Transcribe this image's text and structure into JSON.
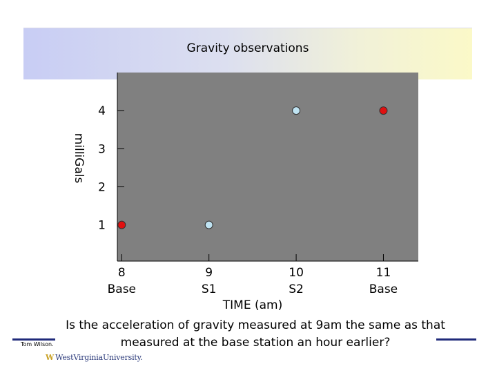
{
  "chart_data": {
    "type": "scatter",
    "title": "Gravity observations",
    "ylabel": "milliGals",
    "xlabel": "TIME (am)",
    "ylim": [
      0.05,
      5.0
    ],
    "xlim": [
      7.95,
      11.4
    ],
    "grid": false,
    "y_ticks": [
      "1",
      "2",
      "3",
      "4"
    ],
    "x_ticks": [
      {
        "value": 8,
        "label": "8",
        "sublabel": "Base"
      },
      {
        "value": 9,
        "label": "9",
        "sublabel": "S1"
      },
      {
        "value": 10,
        "label": "10",
        "sublabel": "S2"
      },
      {
        "value": 11,
        "label": "11",
        "sublabel": "Base"
      }
    ],
    "points": [
      {
        "x": 8,
        "y": 1.0,
        "station": "Base",
        "color": "#e01010"
      },
      {
        "x": 9,
        "y": 1.0,
        "station": "S1",
        "color": "#bfe3f2"
      },
      {
        "x": 10,
        "y": 4.0,
        "station": "S2",
        "color": "#bfe3f2"
      },
      {
        "x": 11,
        "y": 4.0,
        "station": "Base",
        "color": "#e01010"
      }
    ],
    "plot_background": "#808080"
  },
  "question": "Is the acceleration of gravity measured at 9am the same as that measured at the base station an hour earlier?",
  "footer": {
    "author": "Tom Wilson.",
    "logo_text": "WestVirginiaUniversity."
  }
}
